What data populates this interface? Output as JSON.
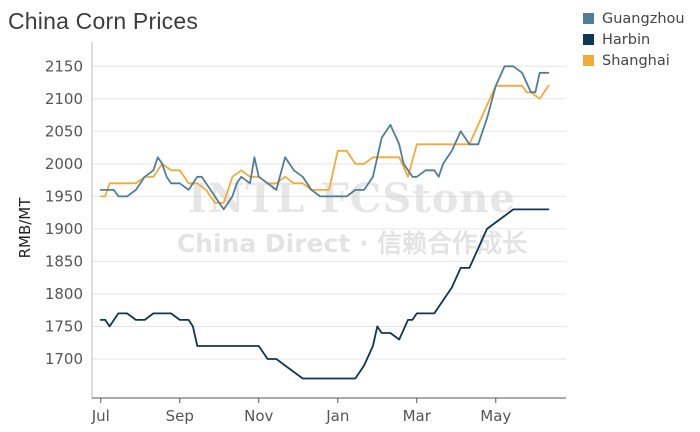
{
  "title": "China Corn Prices",
  "watermark": {
    "brand": "INTL FCStone",
    "tagline": "China Direct · 信赖合作成长"
  },
  "colors": {
    "Guangzhou": "#4f7f98",
    "Harbin": "#0e3655",
    "Shanghai": "#f5a93a",
    "grid": "#e6e6e6",
    "axis": "#555555"
  },
  "chart_data": {
    "type": "line",
    "ylabel": "RMB/MT",
    "xlabel": "",
    "ylim": [
      1640,
      2175
    ],
    "yticks": [
      1700,
      1750,
      1800,
      1850,
      1900,
      1950,
      2000,
      2050,
      2100,
      2150
    ],
    "xlim": [
      -1,
      53
    ],
    "xticks": [
      {
        "pos": 0,
        "label": "Jul"
      },
      {
        "pos": 9,
        "label": "Sep"
      },
      {
        "pos": 18,
        "label": "Nov"
      },
      {
        "pos": 27,
        "label": "Jan"
      },
      {
        "pos": 36,
        "label": "Mar"
      },
      {
        "pos": 45,
        "label": "May"
      }
    ],
    "x_unit": "week index from early July",
    "grid": "horizontal",
    "legend": "top-right",
    "series": [
      {
        "name": "Guangzhou",
        "x": [
          0,
          1,
          1.5,
          2,
          3,
          4,
          5,
          6,
          6.5,
          7,
          7.5,
          8,
          9,
          10,
          11,
          11.5,
          12,
          13,
          14,
          15,
          15.5,
          16,
          17,
          17.5,
          18,
          19,
          20,
          21,
          22,
          23,
          24,
          25,
          26,
          27,
          28,
          29,
          30,
          31,
          32,
          33,
          34,
          34.5,
          35,
          35.5,
          36,
          37,
          37.5,
          38,
          38.5,
          39,
          40,
          41,
          42,
          43,
          44,
          45,
          46,
          47,
          48,
          49,
          49.5,
          50,
          51
        ],
        "y": [
          1960,
          1960,
          1960,
          1950,
          1950,
          1960,
          1980,
          1990,
          2010,
          2000,
          1980,
          1970,
          1970,
          1960,
          1980,
          1980,
          1970,
          1950,
          1930,
          1950,
          1970,
          1980,
          1970,
          2010,
          1980,
          1970,
          1960,
          2010,
          1990,
          1980,
          1960,
          1950,
          1950,
          1950,
          1950,
          1960,
          1960,
          1980,
          2040,
          2060,
          2030,
          2000,
          1990,
          1980,
          1980,
          1990,
          1990,
          1990,
          1980,
          2000,
          2020,
          2050,
          2030,
          2030,
          2070,
          2120,
          2150,
          2150,
          2140,
          2110,
          2110,
          2140,
          2140
        ]
      },
      {
        "name": "Harbin",
        "x": [
          0,
          0.5,
          1,
          2,
          3,
          4,
          5,
          6,
          7,
          8,
          9,
          10,
          10.5,
          11,
          12,
          13,
          14,
          15,
          16,
          17,
          18,
          19,
          20,
          21,
          22,
          23,
          24,
          25,
          26,
          27,
          28,
          29,
          30,
          31,
          31.5,
          32,
          33,
          34,
          35,
          35.5,
          36,
          37,
          38,
          39,
          40,
          41,
          42,
          43,
          44,
          45,
          46,
          47,
          48,
          49,
          50,
          51
        ],
        "y": [
          1760,
          1760,
          1750,
          1770,
          1770,
          1760,
          1760,
          1770,
          1770,
          1770,
          1760,
          1760,
          1750,
          1720,
          1720,
          1720,
          1720,
          1720,
          1720,
          1720,
          1720,
          1700,
          1700,
          1690,
          1680,
          1670,
          1670,
          1670,
          1670,
          1670,
          1670,
          1670,
          1690,
          1720,
          1750,
          1740,
          1740,
          1730,
          1760,
          1760,
          1770,
          1770,
          1770,
          1790,
          1810,
          1840,
          1840,
          1870,
          1900,
          1910,
          1920,
          1930,
          1930,
          1930,
          1930,
          1930
        ]
      },
      {
        "name": "Shanghai",
        "x": [
          0,
          0.5,
          1,
          2,
          3,
          4,
          5,
          6,
          7,
          8,
          9,
          10,
          11,
          12,
          13,
          14,
          15,
          16,
          17,
          18,
          19,
          20,
          21,
          22,
          23,
          24,
          25,
          26,
          27,
          28,
          29,
          30,
          31,
          32,
          33,
          33.5,
          34,
          35,
          36,
          37,
          38,
          39,
          40,
          41,
          42,
          43,
          44,
          45,
          46,
          47,
          48,
          48.5,
          49,
          50,
          51
        ],
        "y": [
          1950,
          1950,
          1970,
          1970,
          1970,
          1970,
          1980,
          1980,
          2000,
          1990,
          1990,
          1970,
          1970,
          1960,
          1940,
          1940,
          1980,
          1990,
          1980,
          1980,
          1970,
          1970,
          1980,
          1970,
          1970,
          1960,
          1960,
          1960,
          2020,
          2020,
          2000,
          2000,
          2010,
          2010,
          2010,
          2010,
          2010,
          1980,
          2030,
          2030,
          2030,
          2030,
          2030,
          2030,
          2030,
          2060,
          2090,
          2120,
          2120,
          2120,
          2120,
          2110,
          2110,
          2100,
          2120
        ]
      }
    ]
  }
}
